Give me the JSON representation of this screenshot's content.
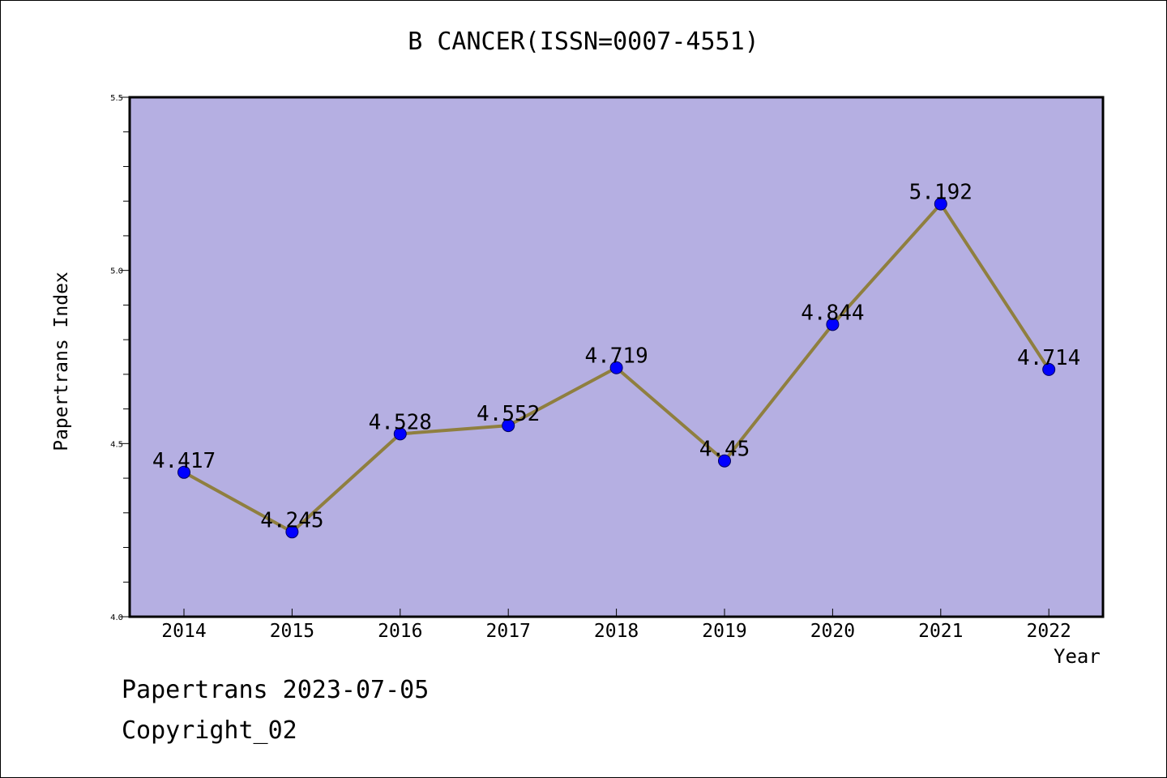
{
  "chart_data": {
    "type": "line",
    "title": "B CANCER(ISSN=0007-4551)",
    "xlabel": "Year",
    "ylabel": "Papertrans Index",
    "categories": [
      "2014",
      "2015",
      "2016",
      "2017",
      "2018",
      "2019",
      "2020",
      "2021",
      "2022"
    ],
    "values": [
      4.417,
      4.245,
      4.528,
      4.552,
      4.719,
      4.45,
      4.844,
      5.192,
      4.714
    ],
    "data_labels": [
      "4.417",
      "4.245",
      "4.528",
      "4.552",
      "4.719",
      "4.45",
      "4.844",
      "5.192",
      "4.714"
    ],
    "ylim": [
      4.0,
      5.5
    ],
    "yticks": [
      "4.0",
      "4.5",
      "5.0",
      "5.5"
    ],
    "grid": false,
    "colors": {
      "plot_background": "#b5afe2",
      "line": "#8f7f3f",
      "marker": "#0000ff"
    }
  },
  "footer": {
    "date_text": "Papertrans 2023-07-05",
    "copyright_text": "Copyright_02"
  }
}
